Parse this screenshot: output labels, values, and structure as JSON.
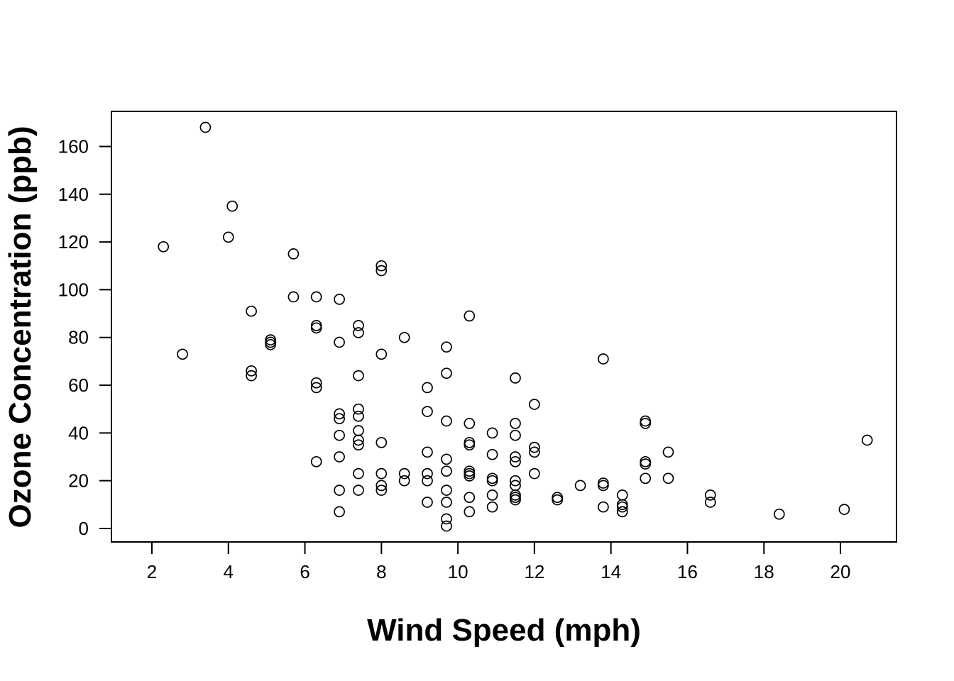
{
  "chart_data": {
    "type": "scatter",
    "title": "",
    "xlabel": "Wind Speed (mph)",
    "ylabel": "Ozone Concentration (ppb)",
    "xlim": [
      1,
      21.5
    ],
    "ylim": [
      -6,
      174
    ],
    "xticks": [
      2,
      4,
      6,
      8,
      10,
      12,
      14,
      16,
      18,
      20
    ],
    "yticks": [
      0,
      20,
      40,
      60,
      80,
      100,
      120,
      140,
      160
    ],
    "grid": false,
    "legend": "none",
    "marker": "open-circle",
    "marker_color": "#000000",
    "points": [
      [
        2.3,
        118
      ],
      [
        2.8,
        73
      ],
      [
        3.4,
        168
      ],
      [
        4.0,
        122
      ],
      [
        4.1,
        135
      ],
      [
        4.6,
        91
      ],
      [
        4.6,
        66
      ],
      [
        4.6,
        64
      ],
      [
        5.1,
        79
      ],
      [
        5.1,
        78
      ],
      [
        5.1,
        77
      ],
      [
        5.7,
        115
      ],
      [
        5.7,
        97
      ],
      [
        6.3,
        97
      ],
      [
        6.3,
        85
      ],
      [
        6.3,
        84
      ],
      [
        6.3,
        61
      ],
      [
        6.3,
        59
      ],
      [
        6.3,
        28
      ],
      [
        6.9,
        96
      ],
      [
        6.9,
        78
      ],
      [
        6.9,
        48
      ],
      [
        6.9,
        46
      ],
      [
        6.9,
        39
      ],
      [
        6.9,
        30
      ],
      [
        6.9,
        16
      ],
      [
        6.9,
        7
      ],
      [
        7.4,
        85
      ],
      [
        7.4,
        82
      ],
      [
        7.4,
        64
      ],
      [
        7.4,
        50
      ],
      [
        7.4,
        47
      ],
      [
        7.4,
        41
      ],
      [
        7.4,
        37
      ],
      [
        7.4,
        35
      ],
      [
        7.4,
        23
      ],
      [
        7.4,
        16
      ],
      [
        8.0,
        110
      ],
      [
        8.0,
        108
      ],
      [
        8.0,
        73
      ],
      [
        8.0,
        36
      ],
      [
        8.0,
        23
      ],
      [
        8.0,
        18
      ],
      [
        8.0,
        16
      ],
      [
        8.6,
        80
      ],
      [
        8.6,
        23
      ],
      [
        8.6,
        20
      ],
      [
        9.2,
        59
      ],
      [
        9.2,
        49
      ],
      [
        9.2,
        32
      ],
      [
        9.2,
        23
      ],
      [
        9.2,
        20
      ],
      [
        9.2,
        11
      ],
      [
        9.7,
        76
      ],
      [
        9.7,
        65
      ],
      [
        9.7,
        45
      ],
      [
        9.7,
        29
      ],
      [
        9.7,
        24
      ],
      [
        9.7,
        16
      ],
      [
        9.7,
        11
      ],
      [
        9.7,
        4
      ],
      [
        9.7,
        1
      ],
      [
        10.3,
        89
      ],
      [
        10.3,
        44
      ],
      [
        10.3,
        36
      ],
      [
        10.3,
        35
      ],
      [
        10.3,
        24
      ],
      [
        10.3,
        23
      ],
      [
        10.3,
        22
      ],
      [
        10.3,
        13
      ],
      [
        10.3,
        7
      ],
      [
        10.9,
        40
      ],
      [
        10.9,
        31
      ],
      [
        10.9,
        21
      ],
      [
        10.9,
        20
      ],
      [
        10.9,
        14
      ],
      [
        10.9,
        9
      ],
      [
        11.5,
        63
      ],
      [
        11.5,
        44
      ],
      [
        11.5,
        39
      ],
      [
        11.5,
        30
      ],
      [
        11.5,
        28
      ],
      [
        11.5,
        20
      ],
      [
        11.5,
        18
      ],
      [
        11.5,
        14
      ],
      [
        11.5,
        13
      ],
      [
        11.5,
        12
      ],
      [
        12.0,
        52
      ],
      [
        12.0,
        34
      ],
      [
        12.0,
        32
      ],
      [
        12.0,
        23
      ],
      [
        12.6,
        13
      ],
      [
        12.6,
        12
      ],
      [
        13.2,
        18
      ],
      [
        13.8,
        71
      ],
      [
        13.8,
        19
      ],
      [
        13.8,
        18
      ],
      [
        13.8,
        9
      ],
      [
        14.3,
        14
      ],
      [
        14.3,
        10
      ],
      [
        14.3,
        9
      ],
      [
        14.3,
        7
      ],
      [
        14.9,
        45
      ],
      [
        14.9,
        44
      ],
      [
        14.9,
        28
      ],
      [
        14.9,
        27
      ],
      [
        14.9,
        21
      ],
      [
        15.5,
        32
      ],
      [
        15.5,
        21
      ],
      [
        16.6,
        14
      ],
      [
        16.6,
        11
      ],
      [
        18.4,
        6
      ],
      [
        20.1,
        8
      ],
      [
        20.7,
        37
      ]
    ]
  }
}
